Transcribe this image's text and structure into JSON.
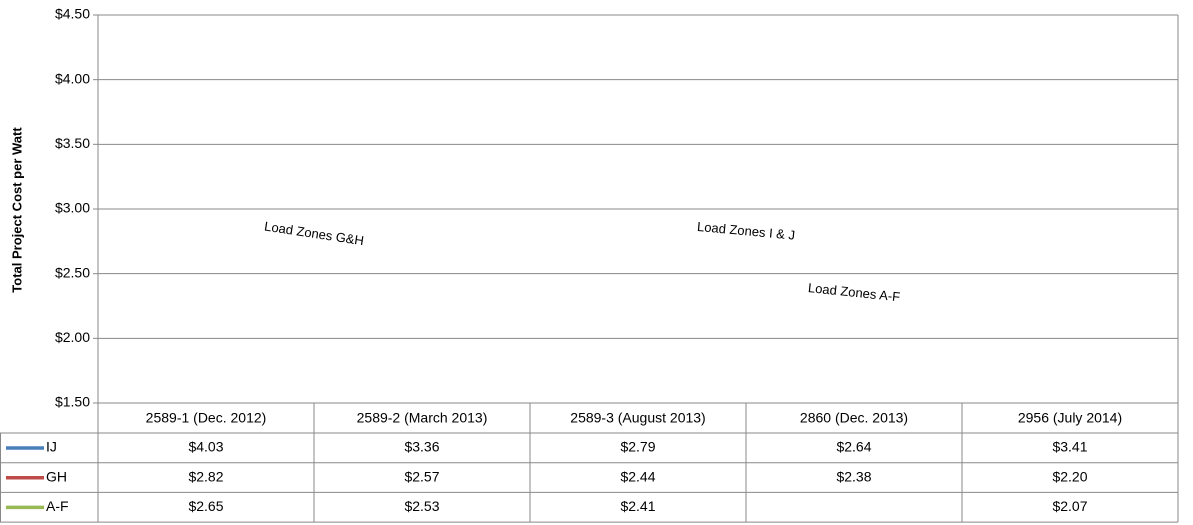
{
  "chart_data": {
    "type": "line",
    "y_label": "Total Project Cost per Watt",
    "categories": [
      "2589-1 (Dec. 2012)",
      "2589-2 (March 2013)",
      "2589-3 (August 2013)",
      "2860 (Dec. 2013)",
      "2956 (July 2014)"
    ],
    "series": [
      {
        "name": "IJ",
        "color": "#4a7ebb",
        "values": [
          4.03,
          3.36,
          2.79,
          2.64,
          3.41
        ],
        "value_labels": [
          "$4.03",
          "$3.36",
          "$2.79",
          "$2.64",
          "$3.41"
        ]
      },
      {
        "name": "GH",
        "color": "#be4b48",
        "values": [
          2.82,
          2.57,
          2.44,
          2.38,
          2.2
        ],
        "value_labels": [
          "$2.82",
          "$2.57",
          "$2.44",
          "$2.38",
          "$2.20"
        ]
      },
      {
        "name": "A-F",
        "color": "#98b954",
        "values": [
          2.65,
          2.53,
          2.41,
          null,
          2.07
        ],
        "value_labels": [
          "$2.65",
          "$2.53",
          "$2.41",
          null,
          "$2.07"
        ]
      }
    ],
    "annotations": [
      {
        "text": "Load Zones I & J",
        "series": 0,
        "at": 3
      },
      {
        "text": "Load Zones G&H",
        "series": 1,
        "at": 1
      },
      {
        "text": "Load Zones A-F",
        "series": 2,
        "at": 3
      }
    ],
    "connect_gaps": true,
    "ylim": [
      1.5,
      4.5
    ],
    "yticks": [
      {
        "value": 1.5,
        "label": "$1.50"
      },
      {
        "value": 2.0,
        "label": "$2.00"
      },
      {
        "value": 2.5,
        "label": "$2.50"
      },
      {
        "value": 3.0,
        "label": "$3.00"
      },
      {
        "value": 3.5,
        "label": "$3.50"
      },
      {
        "value": 4.0,
        "label": "$4.00"
      },
      {
        "value": 4.5,
        "label": "$4.50"
      }
    ],
    "grid": true
  }
}
